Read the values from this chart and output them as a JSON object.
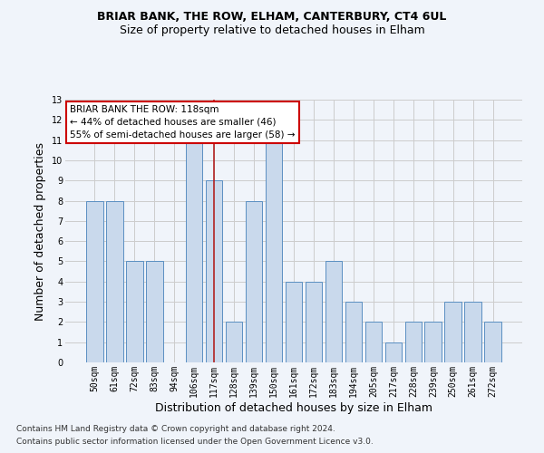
{
  "title1": "BRIAR BANK, THE ROW, ELHAM, CANTERBURY, CT4 6UL",
  "title2": "Size of property relative to detached houses in Elham",
  "xlabel": "Distribution of detached houses by size in Elham",
  "ylabel": "Number of detached properties",
  "footnote1": "Contains HM Land Registry data © Crown copyright and database right 2024.",
  "footnote2": "Contains public sector information licensed under the Open Government Licence v3.0.",
  "categories": [
    "50sqm",
    "61sqm",
    "72sqm",
    "83sqm",
    "94sqm",
    "106sqm",
    "117sqm",
    "128sqm",
    "139sqm",
    "150sqm",
    "161sqm",
    "172sqm",
    "183sqm",
    "194sqm",
    "205sqm",
    "217sqm",
    "228sqm",
    "239sqm",
    "250sqm",
    "261sqm",
    "272sqm"
  ],
  "values": [
    8,
    8,
    5,
    5,
    0,
    11,
    9,
    2,
    8,
    11,
    4,
    4,
    5,
    3,
    2,
    1,
    2,
    2,
    3,
    3,
    2
  ],
  "bar_color": "#c9d9ec",
  "bar_edge_color": "#5a8fc2",
  "highlight_index": 6,
  "highlight_line_color": "#b22222",
  "ylim": [
    0,
    13
  ],
  "yticks": [
    0,
    1,
    2,
    3,
    4,
    5,
    6,
    7,
    8,
    9,
    10,
    11,
    12,
    13
  ],
  "annotation_title": "BRIAR BANK THE ROW: 118sqm",
  "annotation_line1": "← 44% of detached houses are smaller (46)",
  "annotation_line2": "55% of semi-detached houses are larger (58) →",
  "annotation_box_color": "#ffffff",
  "annotation_box_edge": "#cc0000",
  "grid_color": "#cccccc",
  "background_color": "#f0f4fa",
  "title1_fontsize": 9,
  "title2_fontsize": 9,
  "xlabel_fontsize": 9,
  "ylabel_fontsize": 9,
  "tick_fontsize": 7,
  "footnote_fontsize": 6.5,
  "ann_fontsize": 7.5
}
